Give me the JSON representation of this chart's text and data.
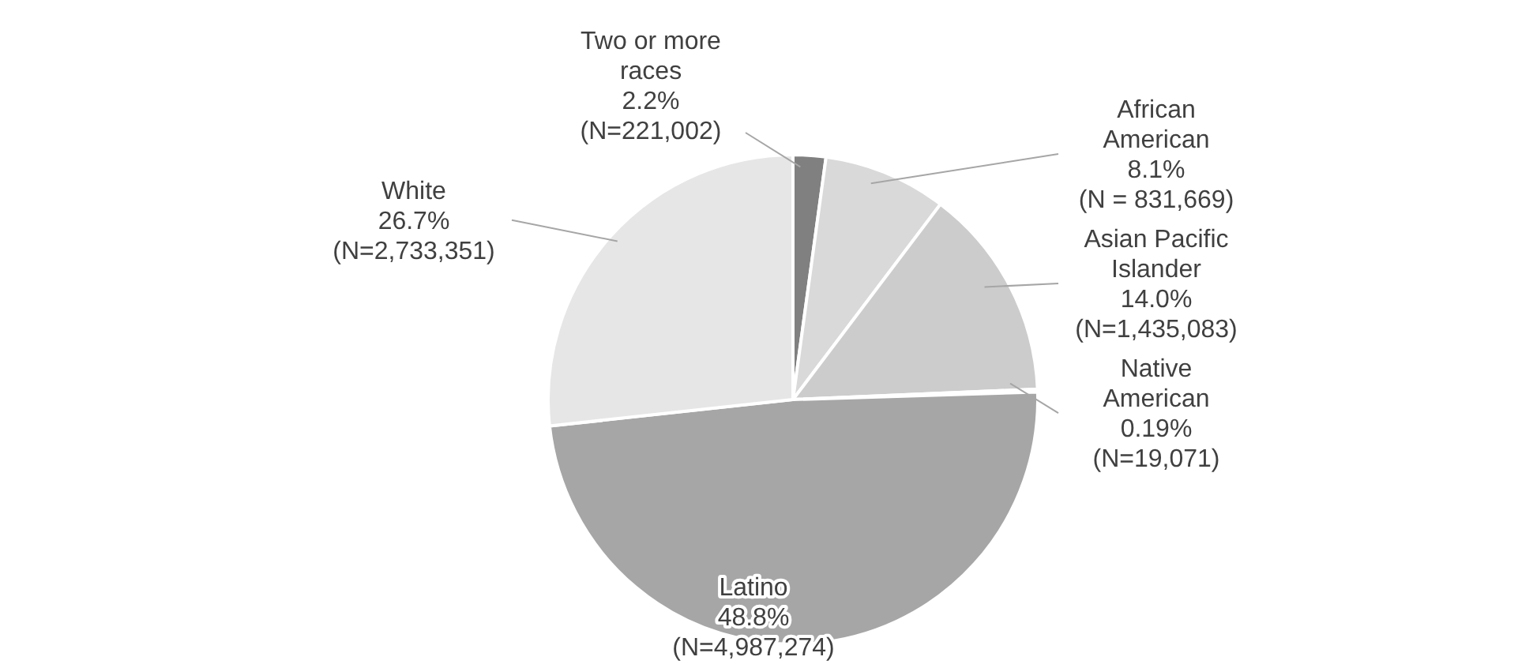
{
  "chart_data": {
    "type": "pie",
    "categories": [
      "Two or more races",
      "African American",
      "Asian Pacific Islander",
      "Native American",
      "Latino",
      "White"
    ],
    "values": [
      221002,
      831669,
      1435083,
      19071,
      4987274,
      2733351
    ],
    "value_labels": [
      "2.2%\n(N=221,002)",
      "8.1%\n(N = 831,669)",
      "14.0%\n(N=1,435,083)",
      "0.19%\n(N=19,071)",
      "48.8%\n(N=4,987,274)",
      "26.7%\n(N=2,733,351)"
    ],
    "colors": [
      "#808080",
      "#d9d9d9",
      "#cccccc",
      "#bfbfbf",
      "#a6a6a6",
      "#e6e6e6"
    ],
    "legend": false
  }
}
